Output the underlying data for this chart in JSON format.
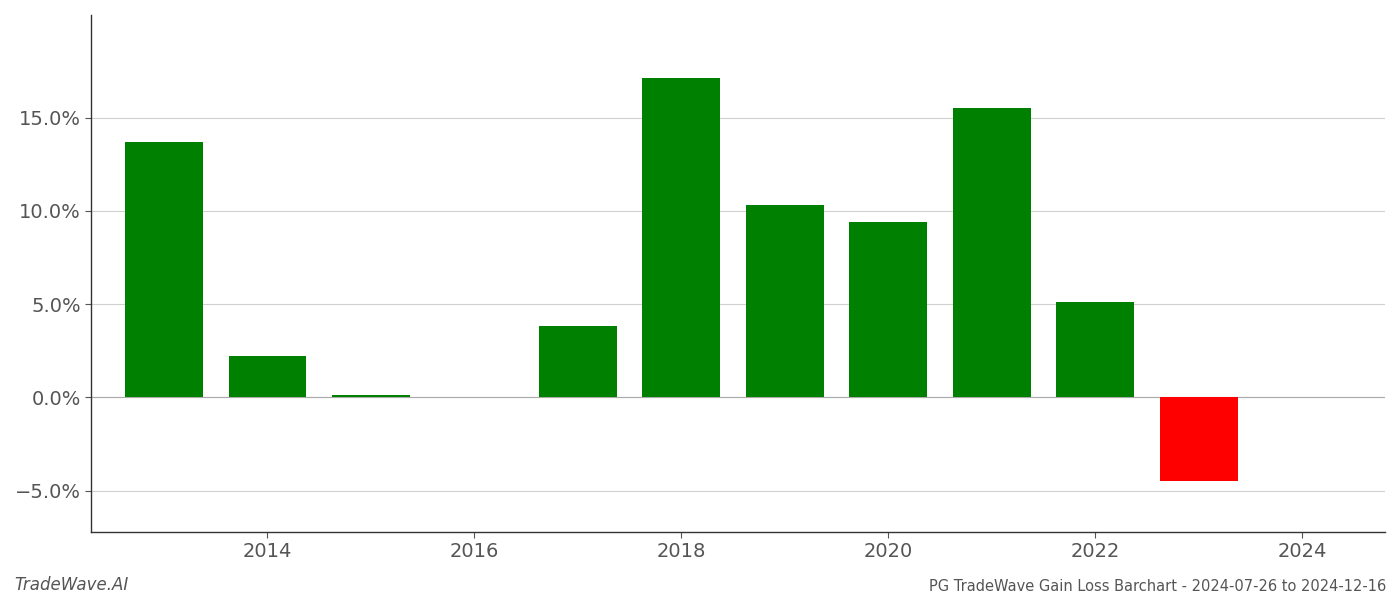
{
  "years": [
    2013,
    2014,
    2015,
    2017,
    2018,
    2019,
    2020,
    2021,
    2022,
    2023
  ],
  "values": [
    0.137,
    0.022,
    0.001,
    0.038,
    0.171,
    0.103,
    0.094,
    0.155,
    0.051,
    -0.045
  ],
  "bar_colors": [
    "#008000",
    "#008000",
    "#008000",
    "#008000",
    "#008000",
    "#008000",
    "#008000",
    "#008000",
    "#008000",
    "#ff0000"
  ],
  "title": "PG TradeWave Gain Loss Barchart - 2024-07-26 to 2024-12-16",
  "watermark": "TradeWave.AI",
  "background_color": "#ffffff",
  "grid_color": "#d0d0d0",
  "xlim": [
    2012.3,
    2024.8
  ],
  "ylim": [
    -0.072,
    0.205
  ],
  "xtick_labels": [
    "2014",
    "2016",
    "2018",
    "2020",
    "2022",
    "2024"
  ],
  "xtick_positions": [
    2014,
    2016,
    2018,
    2020,
    2022,
    2024
  ],
  "ytick_values": [
    -0.05,
    0.0,
    0.05,
    0.1,
    0.15
  ],
  "ytick_labels": [
    "−5.0%",
    "0.0%",
    "5.0%",
    "10.0%",
    "15.0%"
  ],
  "bar_width": 0.75,
  "title_fontsize": 10.5,
  "watermark_fontsize": 12,
  "tick_fontsize": 14
}
